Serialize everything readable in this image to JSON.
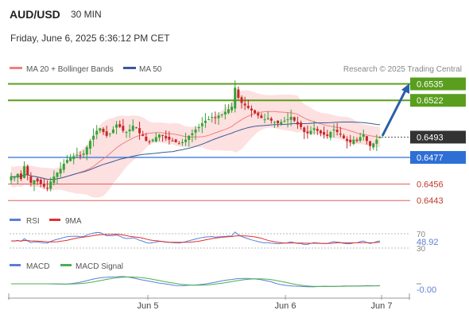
{
  "header": {
    "symbol": "AUD/USD",
    "timeframe": "30 MIN",
    "datetime": "Friday, June 6, 2025 6:36:12 PM CET"
  },
  "legend": {
    "ma20_bb": "MA 20 + Bollinger Bands",
    "ma50": "MA 50",
    "credit": "Research © 2025 Trading Central",
    "rsi": "RSI",
    "rsi_ma": "9MA",
    "macd": "MACD",
    "macd_signal": "MACD Signal"
  },
  "colors": {
    "candle_up": "#36a336",
    "candle_down": "#c62828",
    "ma20": "#f08080",
    "bollinger_fill": "#fde0e0",
    "ma50": "#3a5a9a",
    "resistance": "#5a9e1e",
    "support_blue": "#2e6fd6",
    "support_red": "#e06060",
    "current": "#333333",
    "arrow": "#2b5ea8",
    "rsi": "#5b7fd6",
    "rsi_ma": "#e03030",
    "macd": "#5b7fd6",
    "macd_signal": "#4caf50"
  },
  "chart_data": {
    "type": "candlestick",
    "symbol": "AUD/USD",
    "timeframe": "30 MIN",
    "x_ticks": [
      "Jun 5",
      "Jun 6",
      "Jun 7"
    ],
    "ylim": [
      0.6435,
      0.6545
    ],
    "price_levels": [
      {
        "value": 0.6535,
        "label": "0.6535",
        "kind": "resistance"
      },
      {
        "value": 0.6522,
        "label": "0.6522",
        "kind": "resistance"
      },
      {
        "value": 0.6493,
        "label": "0.6493",
        "kind": "current"
      },
      {
        "value": 0.6477,
        "label": "0.6477",
        "kind": "support"
      },
      {
        "value": 0.6456,
        "label": "0.6456",
        "kind": "support"
      },
      {
        "value": 0.6443,
        "label": "0.6443",
        "kind": "support"
      }
    ],
    "close": [
      0.6462,
      0.6461,
      0.6464,
      0.646,
      0.647,
      0.6463,
      0.6457,
      0.6459,
      0.6458,
      0.6456,
      0.6454,
      0.6453,
      0.6458,
      0.6462,
      0.6465,
      0.6468,
      0.6472,
      0.6475,
      0.6477,
      0.6478,
      0.6479,
      0.6478,
      0.648,
      0.6485,
      0.649,
      0.6494,
      0.6498,
      0.65,
      0.6497,
      0.6494,
      0.6496,
      0.6499,
      0.6503,
      0.6501,
      0.6498,
      0.6497,
      0.6499,
      0.6502,
      0.65,
      0.6496,
      0.6494,
      0.649,
      0.6489,
      0.6491,
      0.6493,
      0.6495,
      0.6494,
      0.6492,
      0.6491,
      0.649,
      0.6489,
      0.6488,
      0.6489,
      0.6491,
      0.6494,
      0.6496,
      0.6499,
      0.6501,
      0.6504,
      0.6506,
      0.6507,
      0.6509,
      0.6508,
      0.651,
      0.6511,
      0.6513,
      0.6515,
      0.6517,
      0.6532,
      0.6524,
      0.652,
      0.6518,
      0.6516,
      0.6514,
      0.6512,
      0.651,
      0.6508,
      0.6507,
      0.6508,
      0.6506,
      0.6505,
      0.6504,
      0.6505,
      0.6506,
      0.6507,
      0.6509,
      0.6506,
      0.6503,
      0.6501,
      0.6497,
      0.6496,
      0.6498,
      0.65,
      0.6498,
      0.6496,
      0.6495,
      0.6494,
      0.6497,
      0.6499,
      0.6497,
      0.6495,
      0.6492,
      0.649,
      0.6489,
      0.6491,
      0.649,
      0.6493,
      0.6495,
      0.649,
      0.6486,
      0.6488,
      0.6491,
      0.6493
    ],
    "rsi": {
      "label_value": "48.92",
      "levels": [
        70,
        30
      ]
    },
    "macd": {
      "label_value": "-0.00"
    }
  }
}
